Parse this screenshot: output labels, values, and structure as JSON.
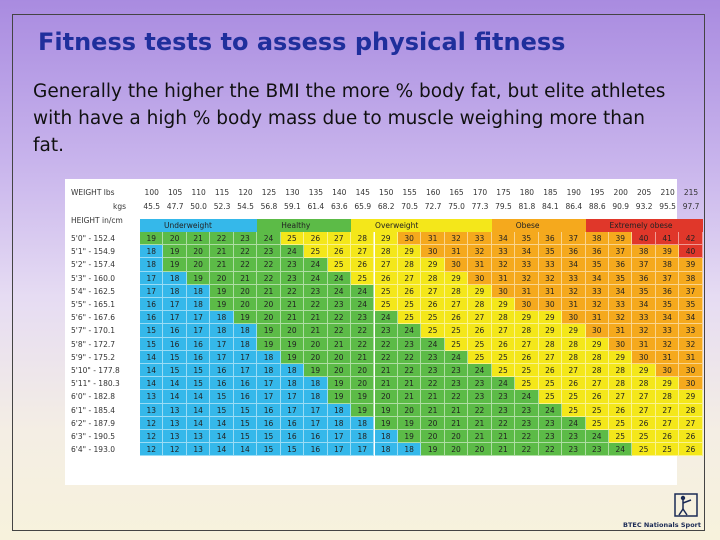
{
  "slide": {
    "title": "Fitness tests to assess physical fitness",
    "body": "Generally the higher the BMI the more % body fat, but elite athletes with have a high % body mass due to muscle weighing more than fat."
  },
  "colors": {
    "underweight": "#35b8ea",
    "healthy": "#5cbb47",
    "overweight": "#f4e71a",
    "obese": "#f5a91d",
    "extremely_obese": "#e0372a"
  },
  "chart_data": {
    "type": "table",
    "weight_label": "WEIGHT lbs",
    "kgs_label": "kgs",
    "height_label": "HEIGHT in/cm",
    "lbs": [
      "100",
      "105",
      "110",
      "115",
      "120",
      "125",
      "130",
      "135",
      "140",
      "145",
      "150",
      "155",
      "160",
      "165",
      "170",
      "175",
      "180",
      "185",
      "190",
      "195",
      "200",
      "205",
      "210",
      "215"
    ],
    "kgs": [
      "45.5",
      "47.7",
      "50.0",
      "52.3",
      "54.5",
      "56.8",
      "59.1",
      "61.4",
      "63.6",
      "65.9",
      "68.2",
      "70.5",
      "72.7",
      "75.0",
      "77.3",
      "79.5",
      "81.8",
      "84.1",
      "86.4",
      "88.6",
      "90.9",
      "93.2",
      "95.5",
      "97.7"
    ],
    "categories": [
      "Underweight",
      "Healthy",
      "Overweight",
      "Obese",
      "Extremely obese"
    ],
    "heights": [
      "5'0\" - 152.4",
      "5'1\" - 154.9",
      "5'2\" - 157.4",
      "5'3\" - 160.0",
      "5'4\" - 162.5",
      "5'5\" - 165.1",
      "5'6\" - 167.6",
      "5'7\" - 170.1",
      "5'8\" - 172.7",
      "5'9\" - 175.2",
      "5'10\" - 177.8",
      "5'11\" - 180.3",
      "6'0\" - 182.8",
      "6'1\" - 185.4",
      "6'2\" - 187.9",
      "6'3\" - 190.5",
      "6'4\" - 193.0"
    ],
    "bmi": [
      [
        19,
        20,
        21,
        22,
        23,
        24,
        25,
        26,
        27,
        28,
        29,
        30,
        31,
        32,
        33,
        34,
        35,
        36,
        37,
        38,
        39,
        40,
        41,
        42
      ],
      [
        18,
        19,
        20,
        21,
        22,
        23,
        24,
        25,
        26,
        27,
        28,
        29,
        30,
        31,
        32,
        33,
        34,
        35,
        36,
        36,
        37,
        38,
        39,
        40
      ],
      [
        18,
        19,
        20,
        21,
        22,
        22,
        23,
        24,
        25,
        26,
        27,
        28,
        29,
        30,
        31,
        32,
        33,
        33,
        34,
        35,
        36,
        37,
        38,
        39
      ],
      [
        17,
        18,
        19,
        20,
        21,
        22,
        23,
        24,
        24,
        25,
        26,
        27,
        28,
        29,
        30,
        31,
        32,
        32,
        33,
        34,
        35,
        36,
        37,
        38
      ],
      [
        17,
        18,
        18,
        19,
        20,
        21,
        22,
        23,
        24,
        24,
        25,
        26,
        27,
        28,
        29,
        30,
        31,
        31,
        32,
        33,
        34,
        35,
        36,
        37
      ],
      [
        16,
        17,
        18,
        19,
        20,
        20,
        21,
        22,
        23,
        24,
        25,
        25,
        26,
        27,
        28,
        29,
        30,
        30,
        31,
        32,
        33,
        34,
        35,
        35
      ],
      [
        16,
        17,
        17,
        18,
        19,
        20,
        21,
        21,
        22,
        23,
        24,
        25,
        25,
        26,
        27,
        28,
        29,
        29,
        30,
        31,
        32,
        33,
        34,
        34
      ],
      [
        15,
        16,
        17,
        18,
        18,
        19,
        20,
        21,
        22,
        22,
        23,
        24,
        25,
        25,
        26,
        27,
        28,
        29,
        29,
        30,
        31,
        32,
        33,
        33
      ],
      [
        15,
        16,
        16,
        17,
        18,
        19,
        19,
        20,
        21,
        22,
        22,
        23,
        24,
        25,
        25,
        26,
        27,
        28,
        28,
        29,
        30,
        31,
        32,
        32
      ],
      [
        14,
        15,
        16,
        17,
        17,
        18,
        19,
        20,
        20,
        21,
        22,
        22,
        23,
        24,
        25,
        25,
        26,
        27,
        28,
        28,
        29,
        30,
        31,
        31
      ],
      [
        14,
        15,
        15,
        16,
        17,
        18,
        18,
        19,
        20,
        20,
        21,
        22,
        23,
        23,
        24,
        25,
        25,
        26,
        27,
        28,
        28,
        29,
        30,
        30
      ],
      [
        14,
        14,
        15,
        16,
        16,
        17,
        18,
        18,
        19,
        20,
        21,
        21,
        22,
        23,
        23,
        24,
        25,
        25,
        26,
        27,
        28,
        28,
        29,
        30
      ],
      [
        13,
        14,
        14,
        15,
        16,
        17,
        17,
        18,
        19,
        19,
        20,
        21,
        21,
        22,
        23,
        23,
        24,
        25,
        25,
        26,
        27,
        27,
        28,
        29
      ],
      [
        13,
        13,
        14,
        15,
        15,
        16,
        17,
        17,
        18,
        19,
        19,
        20,
        21,
        21,
        22,
        23,
        23,
        24,
        25,
        25,
        26,
        27,
        27,
        28
      ],
      [
        12,
        13,
        14,
        14,
        15,
        16,
        16,
        17,
        18,
        18,
        19,
        19,
        20,
        21,
        21,
        22,
        23,
        23,
        24,
        25,
        25,
        26,
        27,
        27
      ],
      [
        12,
        13,
        13,
        14,
        15,
        15,
        16,
        16,
        17,
        18,
        18,
        19,
        20,
        20,
        21,
        21,
        22,
        23,
        23,
        24,
        25,
        25,
        26,
        26
      ],
      [
        12,
        12,
        13,
        14,
        14,
        15,
        15,
        16,
        17,
        17,
        18,
        18,
        19,
        20,
        20,
        21,
        22,
        22,
        23,
        23,
        24,
        25,
        25,
        26
      ]
    ],
    "title": "",
    "xlabel": "WEIGHT lbs",
    "ylabel": "HEIGHT in/cm"
  },
  "logo": {
    "caption": "BTEC Nationals Sport"
  }
}
